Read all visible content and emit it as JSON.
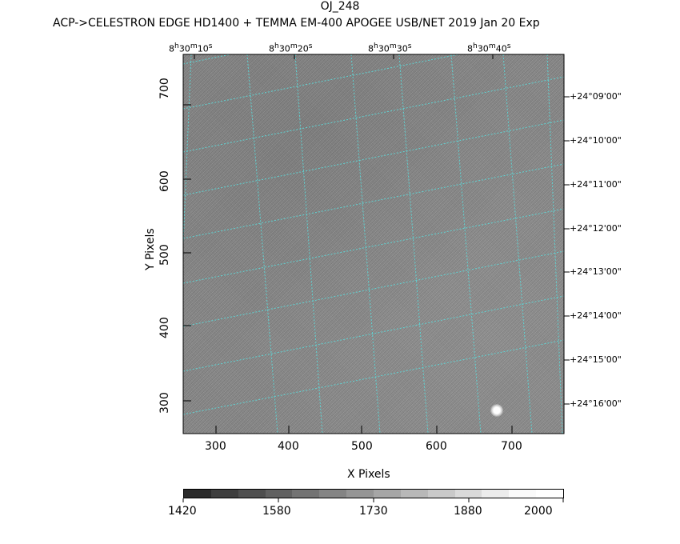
{
  "header": {
    "title": "OJ_248",
    "subtitle": "ACP->CELESTRON EDGE HD1400 + TEMMA EM-400 APOGEE USB/NET   2019 Jan 20    Exp"
  },
  "axes": {
    "x_label": "X Pixels",
    "y_label": "Y Pixels",
    "x_ticks": [
      "300",
      "400",
      "500",
      "600",
      "700"
    ],
    "y_ticks": [
      "700",
      "600",
      "500",
      "400",
      "300"
    ]
  },
  "ra_labels": [
    {
      "h": "8",
      "m": "30",
      "s": "10"
    },
    {
      "h": "8",
      "m": "30",
      "s": "20"
    },
    {
      "h": "8",
      "m": "30",
      "s": "30"
    },
    {
      "h": "8",
      "m": "30",
      "s": "40"
    }
  ],
  "dec_labels": [
    "+24°09'00\"",
    "+24°10'00\"",
    "+24°11'00\"",
    "+24°12'00\"",
    "+24°13'00\"",
    "+24°14'00\"",
    "+24°15'00\"",
    "+24°16'00\""
  ],
  "colorbar": {
    "tick_labels": [
      "1420",
      "1580",
      "1730",
      "1880",
      "2000"
    ]
  },
  "colors": {
    "grid": "#5fd3d3",
    "image_mid": "#8a8a8a"
  }
}
